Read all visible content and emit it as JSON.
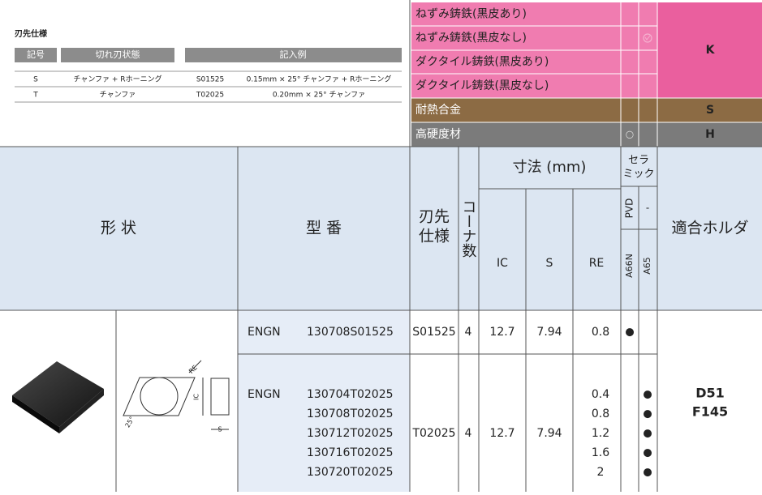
{
  "spec_legend": {
    "title": "刃先仕様",
    "headers": [
      "記号",
      "切れ刃状態",
      "記入例"
    ],
    "rows": [
      [
        "S",
        "チャンファ + Rホーニング",
        "S01525",
        "0.15mm × 25° チャンファ + Rホーニング"
      ],
      [
        "T",
        "チャンファ",
        "T02025",
        "0.20mm × 25° チャンファ"
      ]
    ]
  },
  "materials": {
    "rows": [
      {
        "name": "ねずみ鋳鉄(黒皮あり)"
      },
      {
        "name": "ねずみ鋳鉄(黒皮なし)"
      },
      {
        "name": "ダクタイル鋳鉄(黒皮あり)"
      },
      {
        "name": "ダクタイル鋳鉄(黒皮なし)"
      },
      {
        "name": "耐熱合金"
      },
      {
        "name": "高硬度材",
        "A66N": "○"
      }
    ],
    "groups": [
      "K",
      "S",
      "H"
    ]
  },
  "table": {
    "headers": {
      "shape": "形 状",
      "model": "型 番",
      "spec": [
        "刃先",
        "仕様"
      ],
      "corners": "コーナ数",
      "dims": "寸法 (mm)",
      "ic": "IC",
      "s": "S",
      "re": "RE",
      "ceramic": [
        "セラ",
        "ミック"
      ],
      "pvd": "PVD",
      "dash": "-",
      "a66n": "A66N",
      "a65": "A65",
      "holder": "適合ホルダ"
    },
    "rows": [
      {
        "series": "ENGN",
        "models": [
          "130708S01525"
        ],
        "spec": "S01525",
        "corners": "4",
        "ic": "12.7",
        "s": "7.94",
        "re": [
          "0.8"
        ],
        "a66n": [
          "●"
        ]
      },
      {
        "series": "ENGN",
        "models": [
          "130704T02025",
          "130708T02025",
          "130712T02025",
          "130716T02025",
          "130720T02025"
        ],
        "spec": "T02025",
        "corners": "4",
        "ic": "12.7",
        "s": "7.94",
        "re": [
          "0.4",
          "0.8",
          "1.2",
          "1.6",
          "2"
        ],
        "a65": [
          "●",
          "●",
          "●",
          "●",
          "●"
        ]
      }
    ],
    "holder": [
      "D51",
      "F145"
    ]
  },
  "drawing_labels": [
    "RE",
    "IC",
    "S",
    "25°"
  ]
}
